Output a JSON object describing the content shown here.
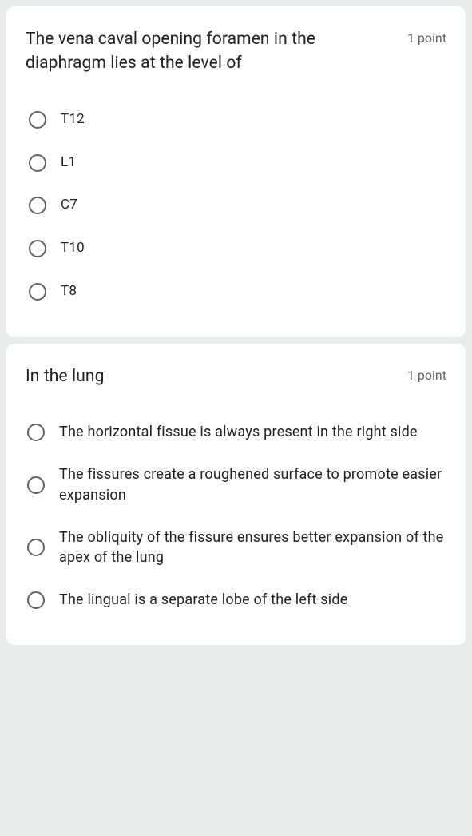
{
  "colors": {
    "background": "#e8ece9",
    "card_bg": "#ffffff",
    "text_primary": "#202124",
    "text_secondary": "#5f6368",
    "radio_border": "#5f6368"
  },
  "q1": {
    "prompt": "The vena caval opening foramen in the diaphragm lies at the level of",
    "points": "1 point",
    "options": [
      "T12",
      "L1",
      "C7",
      "T10",
      "T8"
    ]
  },
  "q2": {
    "prompt": "In the lung",
    "points": "1 point",
    "options": [
      "The horizontal fissue is always present in the right side",
      "The fissures create a roughened surface to promote easier expansion",
      "The obliquity of the fissure ensures better expansion of the apex of the lung",
      "The lingual is a separate lobe of the left side"
    ]
  }
}
